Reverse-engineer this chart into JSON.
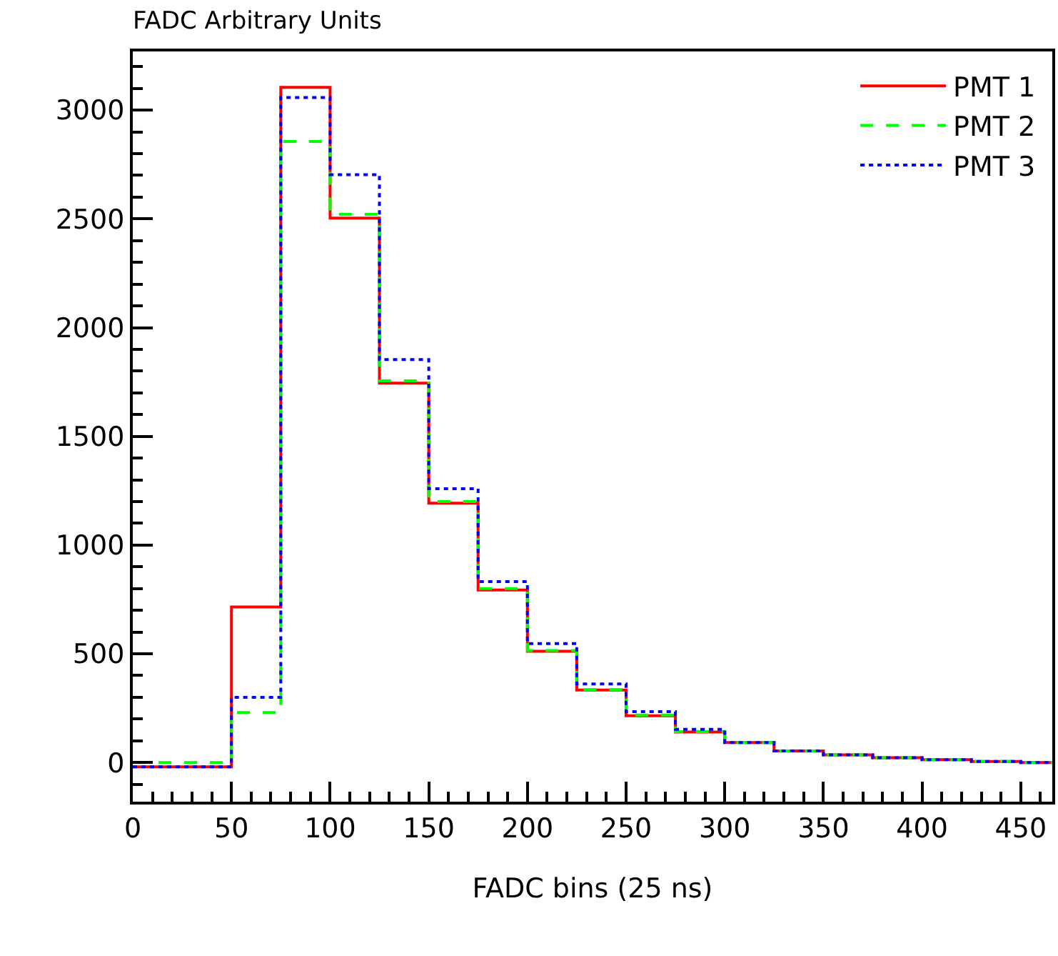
{
  "chart_data": {
    "type": "histogram",
    "title": "FADC Arbitrary Units",
    "xlabel": "FADC bins (25 ns)",
    "bins": [
      0,
      25,
      50,
      75,
      100,
      125,
      150,
      175,
      200,
      225,
      250,
      275,
      300,
      325,
      350,
      375,
      400,
      425,
      450,
      475
    ],
    "series": [
      {
        "name": "PMT 1",
        "color": "#ff0000",
        "line_style": "solid",
        "values": [
          -20,
          -20,
          715,
          3105,
          2504,
          1745,
          1193,
          793,
          512,
          333,
          215,
          140,
          92,
          53,
          35,
          22,
          13,
          5,
          0
        ]
      },
      {
        "name": "PMT 2",
        "color": "#00ff00",
        "line_style": "dashed",
        "values": [
          0,
          0,
          230,
          2856,
          2521,
          1755,
          1200,
          800,
          515,
          335,
          218,
          142,
          92,
          53,
          35,
          22,
          13,
          5,
          0
        ]
      },
      {
        "name": "PMT 3",
        "color": "#0000ff",
        "line_style": "dotted",
        "values": [
          -20,
          -20,
          300,
          3058,
          2703,
          1853,
          1259,
          832,
          547,
          361,
          234,
          153,
          92,
          53,
          35,
          22,
          13,
          5,
          0
        ]
      }
    ],
    "xlim": [
      0,
      466
    ],
    "xticks": [
      0,
      50,
      100,
      150,
      200,
      250,
      300,
      350,
      400,
      450
    ],
    "ylim": [
      -180,
      3270
    ],
    "yticks": [
      0,
      500,
      1000,
      1500,
      2000,
      2500,
      3000
    ],
    "legend": "top right"
  }
}
